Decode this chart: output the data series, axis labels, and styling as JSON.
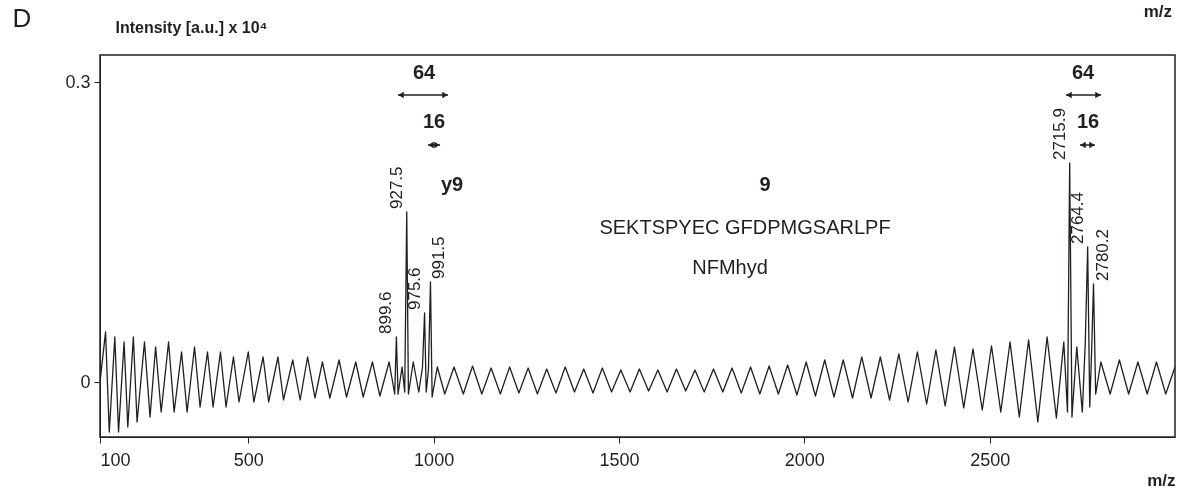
{
  "chart_data": {
    "type": "line",
    "xlabel": "m/z",
    "ylabel": "Intensity [a.u.] x 10⁴",
    "xlim": [
      100,
      3000
    ],
    "ylim": [
      -0.055,
      0.327
    ],
    "xticks": [
      100,
      500,
      1000,
      1500,
      2000,
      2500
    ],
    "yticks": [
      0,
      0.3
    ],
    "grid": false,
    "marker": "none",
    "line_style": "solid",
    "series": [
      {
        "color": "#231f20",
        "x": [
          100,
          115,
          125,
          140,
          150,
          165,
          175,
          190,
          200,
          220,
          235,
          250,
          265,
          285,
          300,
          320,
          335,
          355,
          370,
          390,
          405,
          425,
          440,
          460,
          475,
          500,
          515,
          540,
          555,
          580,
          595,
          620,
          640,
          660,
          680,
          700,
          720,
          745,
          765,
          790,
          810,
          835,
          855,
          880,
          895,
          899.6,
          904,
          915,
          922,
          927.5,
          932,
          945,
          960,
          970,
          975.6,
          980,
          986,
          991.5,
          996,
          1010,
          1030,
          1055,
          1080,
          1105,
          1130,
          1155,
          1180,
          1205,
          1230,
          1255,
          1280,
          1305,
          1330,
          1355,
          1380,
          1405,
          1430,
          1455,
          1480,
          1505,
          1530,
          1555,
          1580,
          1605,
          1630,
          1655,
          1680,
          1705,
          1730,
          1755,
          1780,
          1805,
          1830,
          1855,
          1880,
          1905,
          1930,
          1955,
          1980,
          2005,
          2030,
          2055,
          2080,
          2105,
          2130,
          2155,
          2180,
          2205,
          2230,
          2255,
          2280,
          2305,
          2330,
          2355,
          2380,
          2405,
          2430,
          2455,
          2480,
          2505,
          2530,
          2555,
          2580,
          2605,
          2630,
          2655,
          2680,
          2700,
          2710,
          2715.9,
          2722,
          2735,
          2750,
          2758,
          2764.4,
          2770,
          2775,
          2780.2,
          2786,
          2800,
          2825,
          2850,
          2875,
          2900,
          2925,
          2950,
          2975,
          3000
        ],
        "values": [
          0,
          0.05,
          -0.05,
          0.045,
          -0.05,
          0.04,
          -0.045,
          0.045,
          -0.04,
          0.04,
          -0.035,
          0.035,
          -0.03,
          0.04,
          -0.03,
          0.03,
          -0.03,
          0.035,
          -0.025,
          0.03,
          -0.025,
          0.03,
          -0.025,
          0.025,
          -0.02,
          0.03,
          -0.02,
          0.025,
          -0.02,
          0.025,
          -0.018,
          0.022,
          -0.018,
          0.025,
          -0.016,
          0.02,
          -0.016,
          0.022,
          -0.015,
          0.02,
          -0.015,
          0.02,
          -0.014,
          0.02,
          -0.012,
          0.045,
          -0.012,
          0.015,
          -0.01,
          0.17,
          -0.012,
          0.02,
          -0.01,
          0.015,
          0.069,
          -0.01,
          0.012,
          0.1,
          -0.015,
          0.015,
          -0.012,
          0.015,
          -0.012,
          0.016,
          -0.012,
          0.014,
          -0.012,
          0.015,
          -0.011,
          0.014,
          -0.012,
          0.013,
          -0.011,
          0.015,
          -0.01,
          0.013,
          -0.011,
          0.014,
          -0.01,
          0.012,
          -0.01,
          0.013,
          -0.009,
          0.012,
          -0.01,
          0.013,
          -0.009,
          0.012,
          -0.01,
          0.013,
          -0.01,
          0.014,
          -0.011,
          0.015,
          -0.012,
          0.016,
          -0.012,
          0.017,
          -0.013,
          0.02,
          -0.014,
          0.022,
          -0.015,
          0.022,
          -0.016,
          0.025,
          -0.016,
          0.025,
          -0.018,
          0.028,
          -0.02,
          0.03,
          -0.022,
          0.032,
          -0.024,
          0.035,
          -0.026,
          0.033,
          -0.028,
          0.036,
          -0.03,
          0.04,
          -0.035,
          0.042,
          -0.04,
          0.045,
          -0.036,
          0.04,
          -0.03,
          0.219,
          -0.035,
          0.035,
          -0.03,
          0.04,
          0.135,
          -0.025,
          0.03,
          0.098,
          -0.012,
          0.02,
          -0.012,
          0.022,
          -0.012,
          0.02,
          -0.012,
          0.02,
          -0.012,
          0.015
        ]
      }
    ],
    "annotations": [
      "D",
      "m/z",
      "SEKTSPYEC GFDPMGSARLPF",
      "NFMhyd",
      "9",
      "y9",
      "64",
      "16",
      "64",
      "16",
      {
        "text": "899.6",
        "x": 899.6,
        "y": 0.045
      },
      {
        "text": "927.5",
        "x": 927.5,
        "y": 0.17
      },
      {
        "text": "975.6",
        "x": 975.6,
        "y": 0.069
      },
      {
        "text": "991.5",
        "x": 991.5,
        "y": 0.1
      },
      {
        "text": "2715.9",
        "x": 2715.9,
        "y": 0.219
      },
      {
        "text": "2764.4",
        "x": 2764.4,
        "y": 0.135
      },
      {
        "text": "2780.2",
        "x": 2780.2,
        "y": 0.098
      }
    ]
  }
}
